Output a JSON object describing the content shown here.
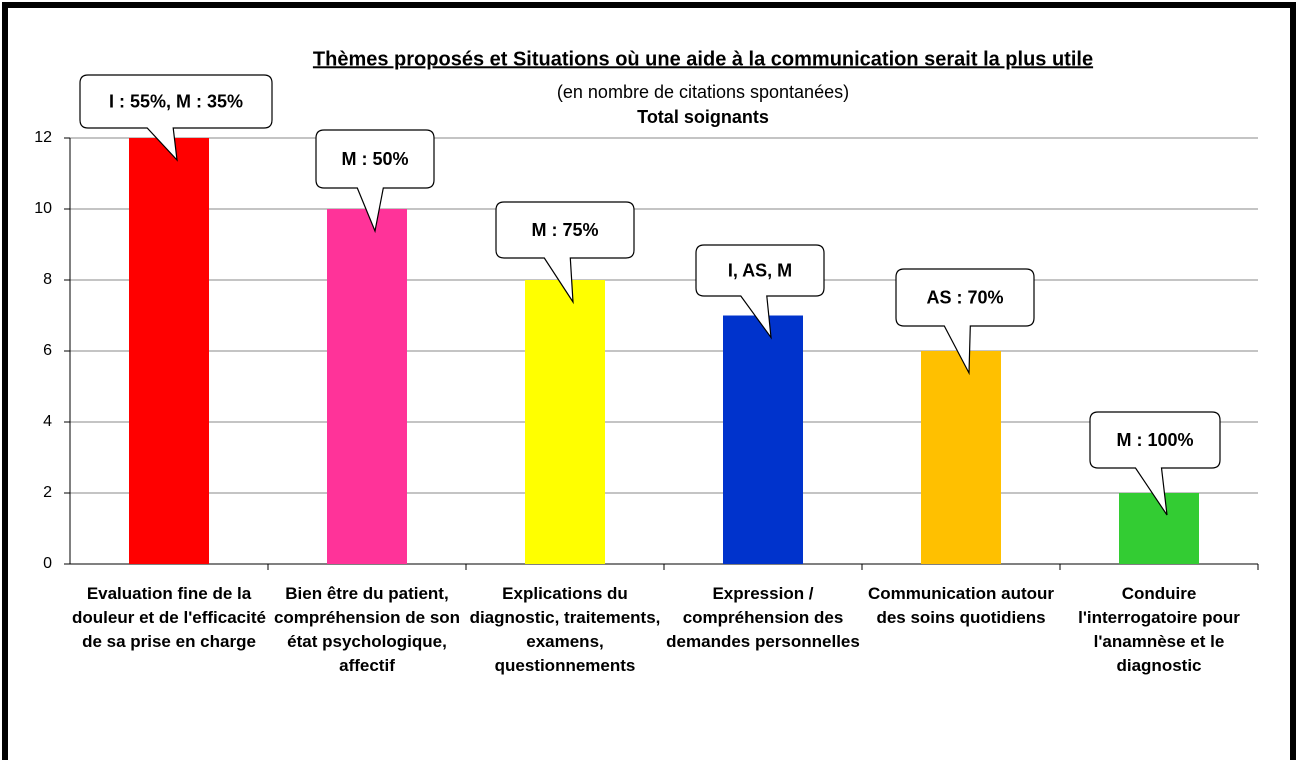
{
  "chart_data": {
    "type": "bar",
    "title": "Thèmes proposés et Situations  où une aide à la communication  serait la plus utile",
    "subtitle": "(en nombre de citations spontanées)",
    "subtitle2": "Total soignants",
    "categories": [
      "Evaluation fine de la douleur et de l'efficacité de sa prise en charge",
      "Bien être du patient, compréhension de son état psychologique, affectif",
      "Explications du diagnostic, traitements, examens, questionnements",
      "Expression / compréhension des demandes personnelles",
      "Communication autour des soins quotidiens",
      "Conduire l'interrogatoire pour l'anamnèse et le diagnostic"
    ],
    "values": [
      12,
      10,
      8,
      7,
      6,
      2
    ],
    "colors": [
      "#ff0000",
      "#ff3399",
      "#ffff00",
      "#0033cc",
      "#ffc000",
      "#33cc33"
    ],
    "annotations": [
      "I : 55%, M : 35%",
      "M : 50%",
      "M : 75%",
      "I, AS, M",
      "AS : 70%",
      "M : 100%"
    ],
    "ylim": [
      0,
      12
    ],
    "yticks": [
      0,
      2,
      4,
      6,
      8,
      10,
      12
    ],
    "grid": true
  }
}
